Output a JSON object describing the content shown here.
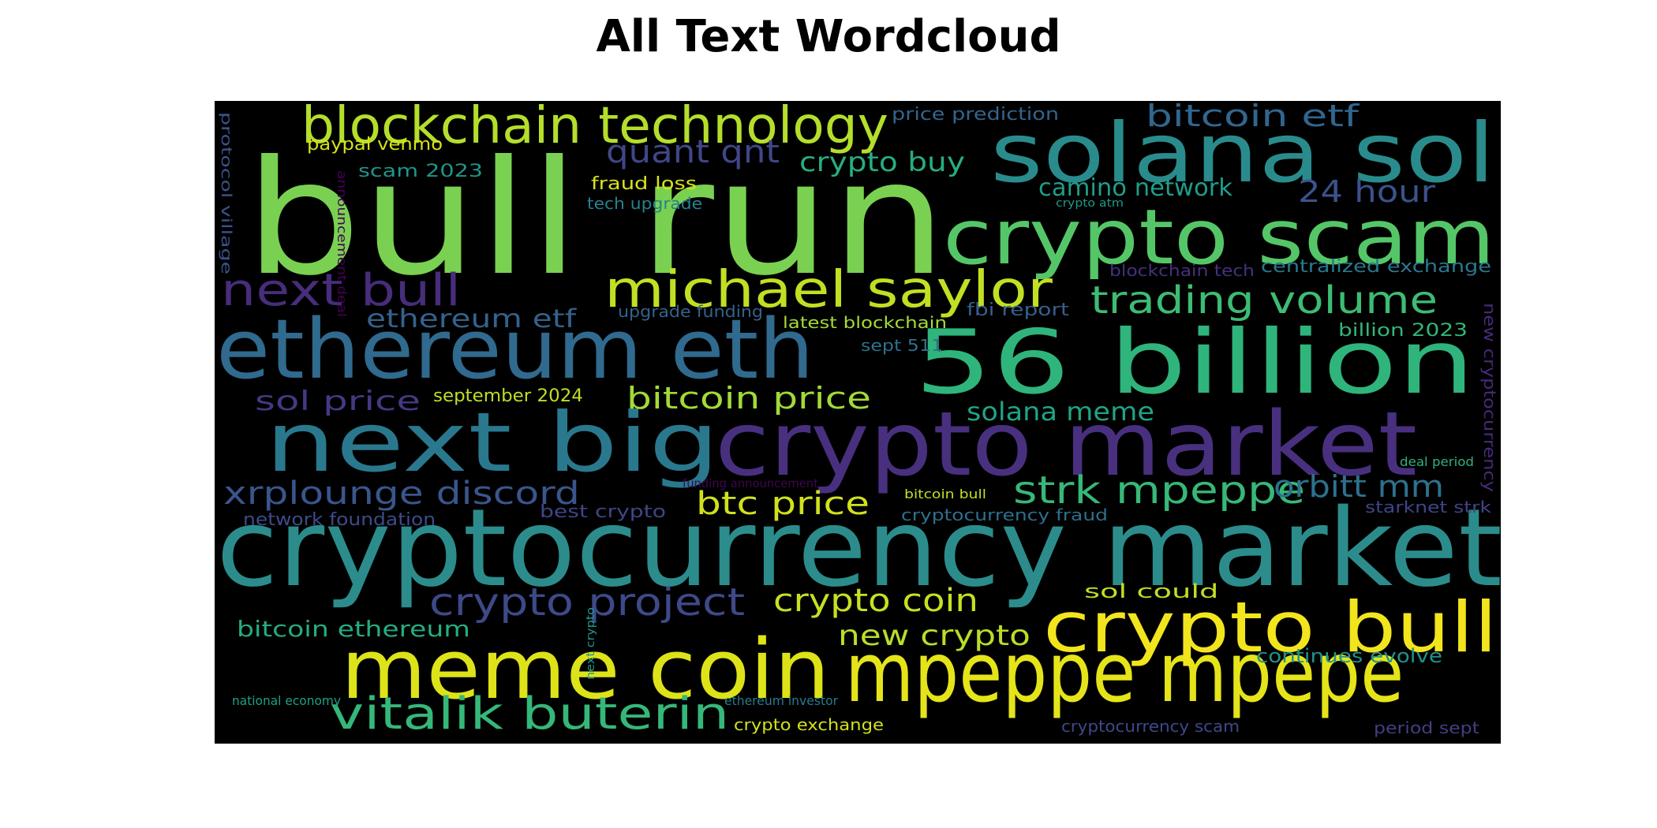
{
  "chart_data": {
    "type": "wordcloud",
    "title": "All Text Wordcloud",
    "background": "#000000",
    "colormap": "viridis",
    "words": [
      {
        "text": "bull run",
        "color": "#7ad151"
      },
      {
        "text": "cryptocurrency market",
        "color": "#2c8c8c"
      },
      {
        "text": "solana sol",
        "color": "#2a8b8c"
      },
      {
        "text": "crypto scam",
        "color": "#55c667"
      },
      {
        "text": "crypto market",
        "color": "#48307f"
      },
      {
        "text": "56 billion",
        "color": "#2fb47c"
      },
      {
        "text": "ethereum eth",
        "color": "#306a8e"
      },
      {
        "text": "next big",
        "color": "#2a788e"
      },
      {
        "text": "mpeppe mpepe",
        "color": "#e5e419"
      },
      {
        "text": "meme coin",
        "color": "#dde318"
      },
      {
        "text": "crypto bull",
        "color": "#f2e51d"
      },
      {
        "text": "michael saylor",
        "color": "#c2df23"
      },
      {
        "text": "blockchain technology",
        "color": "#b5de2b"
      },
      {
        "text": "vitalik buterin",
        "color": "#35b779"
      },
      {
        "text": "next bull",
        "color": "#472d7b"
      },
      {
        "text": "trading volume",
        "color": "#3dbc74"
      },
      {
        "text": "strk mpeppe",
        "color": "#37b878"
      },
      {
        "text": "crypto project",
        "color": "#3e4989"
      },
      {
        "text": "xrplounge discord",
        "color": "#39568c"
      },
      {
        "text": "bitcoin price",
        "color": "#a2da37"
      },
      {
        "text": "btc price",
        "color": "#d0e11c"
      },
      {
        "text": "crypto coin",
        "color": "#c8e020"
      },
      {
        "text": "quant qnt",
        "color": "#3f4788"
      },
      {
        "text": "bitcoin etf",
        "color": "#31668e"
      },
      {
        "text": "orbitt mm",
        "color": "#2d718e"
      },
      {
        "text": "24 hour",
        "color": "#3b528b"
      },
      {
        "text": "crypto buy",
        "color": "#27ad81"
      },
      {
        "text": "new crypto",
        "color": "#b8de29"
      },
      {
        "text": "ethereum etf",
        "color": "#33628d"
      },
      {
        "text": "solana meme",
        "color": "#20a486"
      },
      {
        "text": "sol price",
        "color": "#443983"
      },
      {
        "text": "camino network",
        "color": "#1f9e89"
      },
      {
        "text": "bitcoin ethereum",
        "color": "#25ac82"
      },
      {
        "text": "continues evolve",
        "color": "#21918c"
      },
      {
        "text": "centralized exchange",
        "color": "#2a788e"
      },
      {
        "text": "sol could",
        "color": "#c0df25"
      },
      {
        "text": "price prediction",
        "color": "#32658e"
      },
      {
        "text": "paypal venmo",
        "color": "#d5e21a"
      },
      {
        "text": "fraud loss",
        "color": "#d8e219"
      },
      {
        "text": "scam 2023",
        "color": "#1f968b"
      },
      {
        "text": "tech upgrade",
        "color": "#26828e"
      },
      {
        "text": "september 2024",
        "color": "#bddf26"
      },
      {
        "text": "fbi report",
        "color": "#355f8d"
      },
      {
        "text": "best crypto",
        "color": "#414487"
      },
      {
        "text": "cryptocurrency fraud",
        "color": "#2d708e"
      },
      {
        "text": "network foundation",
        "color": "#3e4a89"
      },
      {
        "text": "blockchain tech",
        "color": "#46307e"
      },
      {
        "text": "billion 2023",
        "color": "#34b679"
      },
      {
        "text": "latest blockchain",
        "color": "#a5db36"
      },
      {
        "text": "upgrade funding",
        "color": "#33638d"
      },
      {
        "text": "sept 511",
        "color": "#2c728e"
      },
      {
        "text": "starknet strk",
        "color": "#404588"
      },
      {
        "text": "crypto exchange",
        "color": "#d2e21b"
      },
      {
        "text": "cryptocurrency scam",
        "color": "#3f4889"
      },
      {
        "text": "period sept",
        "color": "#433e85"
      },
      {
        "text": "new cryptocurrency",
        "color": "#472a7a"
      },
      {
        "text": "protocol village",
        "color": "#3b528b"
      },
      {
        "text": "deal period",
        "color": "#2db27d"
      },
      {
        "text": "national economy",
        "color": "#1fa088"
      },
      {
        "text": "ethereum investor",
        "color": "#287c8e"
      },
      {
        "text": "bitcoin bull",
        "color": "#c2df23"
      },
      {
        "text": "funding announcement",
        "color": "#3e0751"
      },
      {
        "text": "announcement deal",
        "color": "#440154"
      },
      {
        "text": "next crypto",
        "color": "#1f9a8a"
      },
      {
        "text": "crypto atm",
        "color": "#1e9b8a"
      }
    ]
  }
}
